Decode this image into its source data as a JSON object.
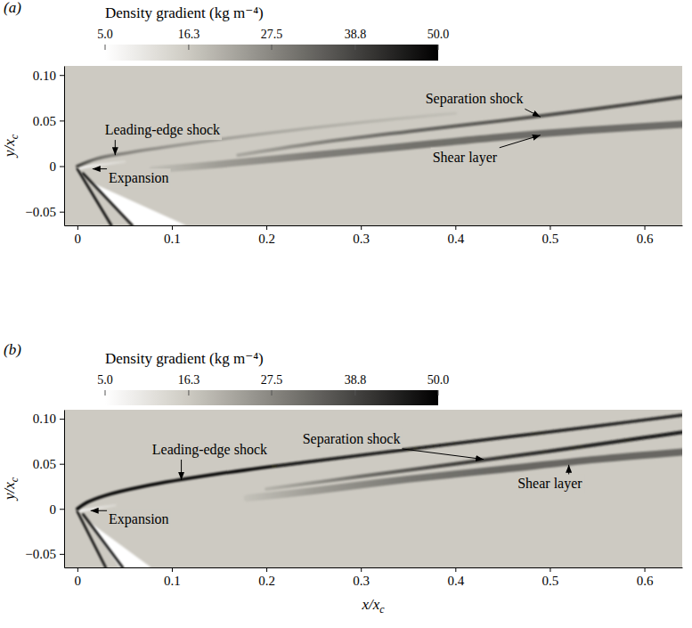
{
  "chart_data": [
    {
      "type": "contour",
      "panel_label": "(a)",
      "colorbar": {
        "title": "Density gradient (kg m⁻⁴)",
        "range": [
          5,
          50
        ],
        "ticks": [
          {
            "value": 5,
            "label": "5.0"
          },
          16.3,
          27.5,
          38.8,
          {
            "value": 50,
            "label": "50.0"
          }
        ]
      },
      "xlim": [
        -0.014,
        0.64
      ],
      "xticks": [
        0,
        0.1,
        0.2,
        0.3,
        0.4,
        0.5,
        0.6
      ],
      "ylim": [
        -0.065,
        0.11
      ],
      "yticks": [
        {
          "value": -0.05,
          "label": "−0.05"
        },
        0,
        0.05,
        {
          "value": 0.1,
          "label": "0.10"
        }
      ],
      "ylabel": "y/xc",
      "regions": [
        {
          "x": [
            0.015,
            0.06,
            0.115
          ],
          "y": [
            -0.018,
            -0.065,
            -0.065
          ],
          "value": 5
        }
      ],
      "features": [
        {
          "x": [
            0,
            0.036
          ],
          "y": [
            -0.003,
            -0.065
          ],
          "values": [
            50,
            50
          ]
        },
        {
          "x": [
            0.006,
            0.058
          ],
          "y": [
            -0.008,
            -0.065
          ],
          "values": [
            50,
            50
          ]
        },
        {
          "x": [
            0.003,
            0.02,
            0.05
          ],
          "y": [
            -0.002,
            0.001,
            0.005
          ],
          "values": [
            8,
            10,
            14
          ]
        },
        {
          "x": [
            0,
            0.02,
            0.05,
            0.1,
            0.2,
            0.3,
            0.4
          ],
          "y": [
            0,
            0.008,
            0.014,
            0.022,
            0.036,
            0.048,
            0.058
          ],
          "values": [
            40,
            32,
            28,
            25,
            22,
            20,
            18
          ]
        },
        {
          "x": [
            0.17,
            0.25,
            0.35,
            0.45,
            0.55,
            0.64
          ],
          "y": [
            0.012,
            0.025,
            0.038,
            0.05,
            0.063,
            0.076
          ],
          "values": [
            22,
            28,
            33,
            36,
            38,
            40
          ]
        },
        {
          "x": [
            0.08,
            0.15,
            0.25,
            0.35,
            0.45,
            0.55,
            0.64
          ],
          "y": [
            -0.004,
            0.002,
            0.012,
            0.022,
            0.032,
            0.04,
            0.046
          ],
          "values": [
            18,
            24,
            29,
            31,
            32,
            32,
            32
          ]
        }
      ],
      "annotations": [
        {
          "text": "Leading-edge shock",
          "x": 0.04,
          "y": 0.012,
          "text_x": 0.09,
          "text_y": 0.04
        },
        {
          "text": "Expansion",
          "x": 0.016,
          "y": -0.003,
          "text_x": 0.065,
          "text_y": -0.013
        },
        {
          "text": "Separation shock",
          "x": 0.49,
          "y": 0.054,
          "text_x": 0.42,
          "text_y": 0.074
        },
        {
          "text": "Shear layer",
          "x": 0.49,
          "y": 0.034,
          "text_x": 0.41,
          "text_y": 0.01
        }
      ]
    },
    {
      "type": "contour",
      "panel_label": "(b)",
      "colorbar": {
        "title": "Density gradient (kg m⁻⁴)",
        "range": [
          5,
          50
        ],
        "ticks": [
          {
            "value": 5,
            "label": "5.0"
          },
          16.3,
          27.5,
          38.8,
          {
            "value": 50,
            "label": "50.0"
          }
        ]
      },
      "xlim": [
        -0.014,
        0.64
      ],
      "xticks": [
        0,
        0.1,
        0.2,
        0.3,
        0.4,
        0.5,
        0.6
      ],
      "ylim": [
        -0.065,
        0.11
      ],
      "yticks": [
        {
          "value": -0.05,
          "label": "−0.05"
        },
        0,
        0.05,
        {
          "value": 0.1,
          "label": "0.10"
        }
      ],
      "xlabel": "x/xc",
      "ylabel": "y/xc",
      "regions": [
        {
          "x": [
            0.012,
            0.045,
            0.078
          ],
          "y": [
            -0.014,
            -0.065,
            -0.065
          ],
          "value": 5
        }
      ],
      "features": [
        {
          "x": [
            0,
            0.03
          ],
          "y": [
            -0.003,
            -0.065
          ],
          "values": [
            50,
            50
          ]
        },
        {
          "x": [
            0.006,
            0.048
          ],
          "y": [
            -0.006,
            -0.065
          ],
          "values": [
            50,
            50
          ]
        },
        {
          "x": [
            0.003,
            0.015,
            0.04
          ],
          "y": [
            -0.002,
            0,
            0.004
          ],
          "values": [
            8,
            10,
            14
          ]
        },
        {
          "x": [
            0,
            0.01,
            0.03,
            0.07,
            0.15,
            0.25,
            0.35,
            0.45,
            0.55,
            0.64
          ],
          "y": [
            0,
            0.007,
            0.015,
            0.025,
            0.039,
            0.053,
            0.066,
            0.079,
            0.092,
            0.104
          ],
          "values": [
            50,
            50,
            50,
            50,
            50,
            48,
            47,
            46,
            45,
            45
          ]
        },
        {
          "x": [
            0.2,
            0.3,
            0.4,
            0.5,
            0.6,
            0.64
          ],
          "y": [
            0.022,
            0.036,
            0.05,
            0.064,
            0.079,
            0.085
          ],
          "values": [
            20,
            32,
            40,
            44,
            46,
            46
          ]
        },
        {
          "x": [
            0.18,
            0.25,
            0.35,
            0.45,
            0.55,
            0.64
          ],
          "y": [
            0.012,
            0.02,
            0.033,
            0.044,
            0.055,
            0.063
          ],
          "values": [
            18,
            24,
            30,
            33,
            33,
            33
          ]
        }
      ],
      "annotations": [
        {
          "text": "Leading-edge shock",
          "x": 0.11,
          "y": 0.032,
          "text_x": 0.14,
          "text_y": 0.066
        },
        {
          "text": "Expansion",
          "x": 0.014,
          "y": -0.002,
          "text_x": 0.065,
          "text_y": -0.011
        },
        {
          "text": "Separation shock",
          "x": 0.43,
          "y": 0.055,
          "text_x": 0.29,
          "text_y": 0.078
        },
        {
          "text": "Shear layer",
          "x": 0.52,
          "y": 0.049,
          "text_x": 0.5,
          "text_y": 0.028
        }
      ]
    }
  ]
}
